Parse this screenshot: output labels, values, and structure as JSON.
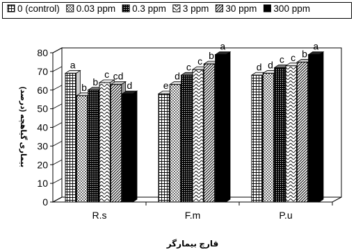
{
  "chart_data": {
    "type": "bar",
    "categories": [
      "R.s",
      "F.m",
      "P.u"
    ],
    "series": [
      {
        "name": "0 (control)",
        "values": [
          69,
          58,
          68
        ],
        "letters": [
          "a",
          "e",
          "d"
        ],
        "pattern": "grid"
      },
      {
        "name": "0.03 ppm",
        "values": [
          57,
          63,
          69
        ],
        "letters": [
          "b",
          "d",
          "d"
        ],
        "pattern": "dots"
      },
      {
        "name": "0.3 ppm",
        "values": [
          60,
          68,
          72
        ],
        "letters": [
          "b",
          "c",
          "c"
        ],
        "pattern": "dense"
      },
      {
        "name": "3 ppm",
        "values": [
          64,
          71,
          73
        ],
        "letters": [
          "c",
          "c",
          "c"
        ],
        "pattern": "wave"
      },
      {
        "name": "30 ppm",
        "values": [
          63,
          74,
          75
        ],
        "letters": [
          "cd",
          "b",
          "b"
        ],
        "pattern": "diag"
      },
      {
        "name": "300 ppm",
        "values": [
          58,
          79,
          79
        ],
        "letters": [
          "d",
          "a",
          "a"
        ],
        "pattern": "solid"
      }
    ],
    "ylim": [
      0,
      80
    ],
    "yticks": [
      0,
      10,
      20,
      30,
      40,
      50,
      60,
      70,
      80
    ],
    "xlabel": "قارچ بیمارگر",
    "ylabel": "بیماری گیاهچه (درصد)",
    "title": "",
    "grid": false,
    "legend_position": "top",
    "colors": {
      "bar_fill": "#ffffff",
      "solid": "#000000",
      "axis": "#000000",
      "wall": "#ffffff"
    }
  }
}
